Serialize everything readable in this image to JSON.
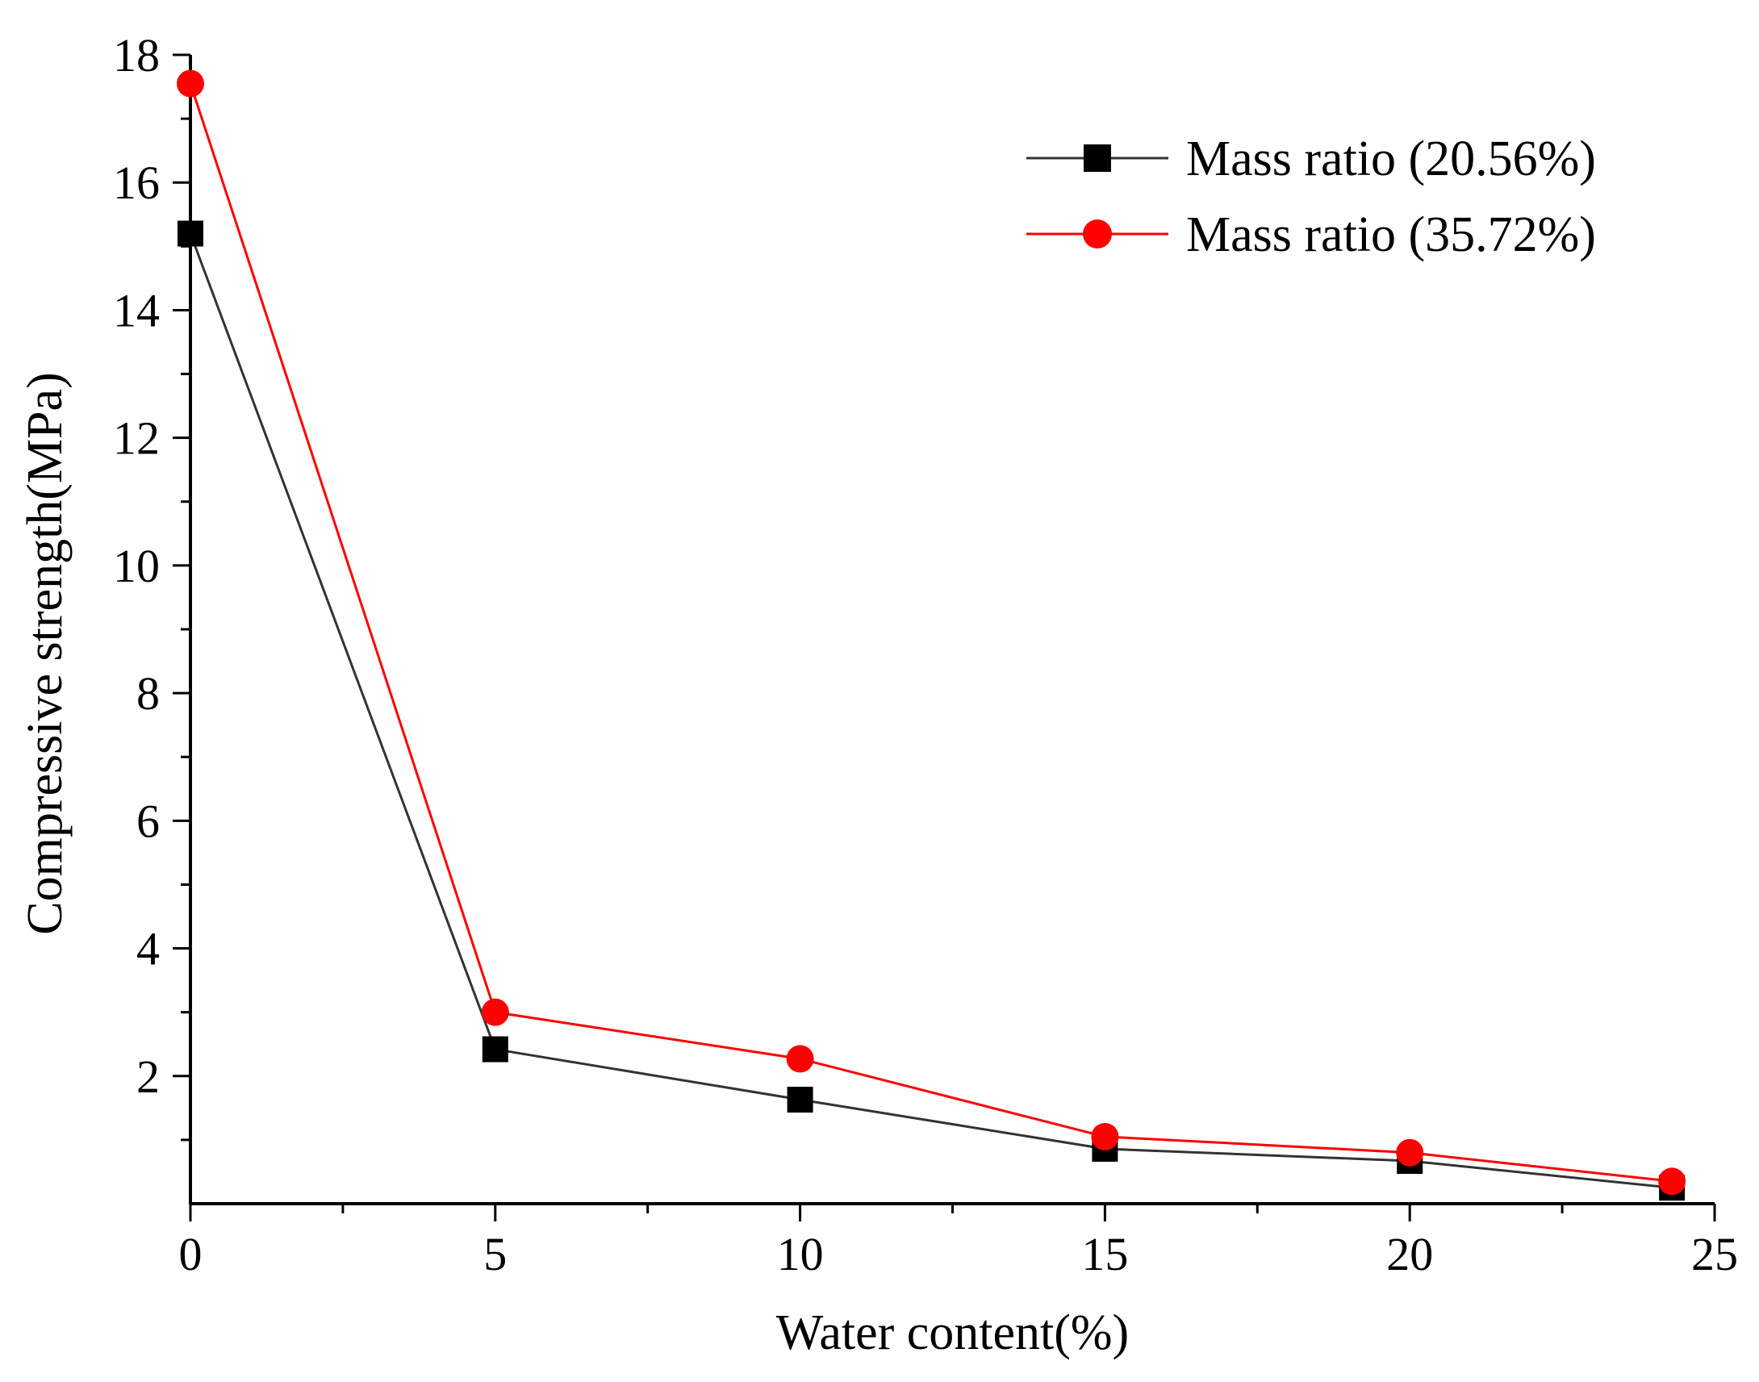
{
  "chart_data": {
    "type": "line",
    "title": "",
    "xlabel": "Water content(%)",
    "ylabel": "Compressive strength(MPa)",
    "xlim": [
      0,
      25
    ],
    "ylim": [
      0,
      18
    ],
    "xticks": [
      0,
      5,
      10,
      15,
      20,
      25
    ],
    "xtick_labels": [
      "0",
      "5",
      "10",
      "15",
      "20",
      "25"
    ],
    "yticks": [
      2,
      4,
      6,
      8,
      10,
      12,
      14,
      16,
      18
    ],
    "ytick_labels": [
      "2",
      "4",
      "6",
      "8",
      "10",
      "12",
      "14",
      "16",
      "18"
    ],
    "x_minor_step": 2.5,
    "y_minor_step": 1,
    "grid": false,
    "legend_position": "top-right",
    "series": [
      {
        "name": "Mass ratio (20.56%)",
        "color": "#000000",
        "line_color": "#333333",
        "marker": "square",
        "x": [
          0,
          5,
          10,
          15,
          20,
          24.3
        ],
        "y": [
          15.2,
          2.42,
          1.63,
          0.86,
          0.67,
          0.25
        ]
      },
      {
        "name": "Mass ratio (35.72%)",
        "color": "#ff0000",
        "line_color": "#ff0000",
        "marker": "circle",
        "x": [
          0,
          5,
          10,
          15,
          20,
          24.3
        ],
        "y": [
          17.55,
          3.0,
          2.27,
          1.05,
          0.8,
          0.35
        ]
      }
    ]
  }
}
